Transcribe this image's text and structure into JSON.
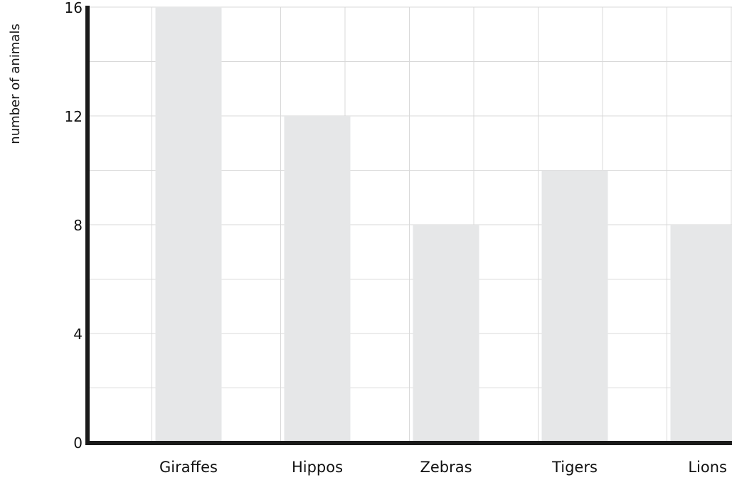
{
  "chart_data": {
    "type": "bar",
    "title": "",
    "xlabel": "",
    "ylabel": "number of animals",
    "categories": [
      "Giraffes",
      "Hippos",
      "Zebras",
      "Tigers",
      "Lions"
    ],
    "values": [
      16,
      12,
      8,
      10,
      8
    ],
    "ylim": [
      0,
      16
    ],
    "y_ticks": [
      0,
      4,
      8,
      12,
      16
    ],
    "y_tick_labels": [
      "0",
      "4",
      "8",
      "12",
      "16"
    ],
    "grid": true,
    "legend": "none",
    "colors": {
      "bar": "#e6e7e8",
      "grid": "#d9d9d9",
      "axis": "#1a1a1a"
    }
  }
}
